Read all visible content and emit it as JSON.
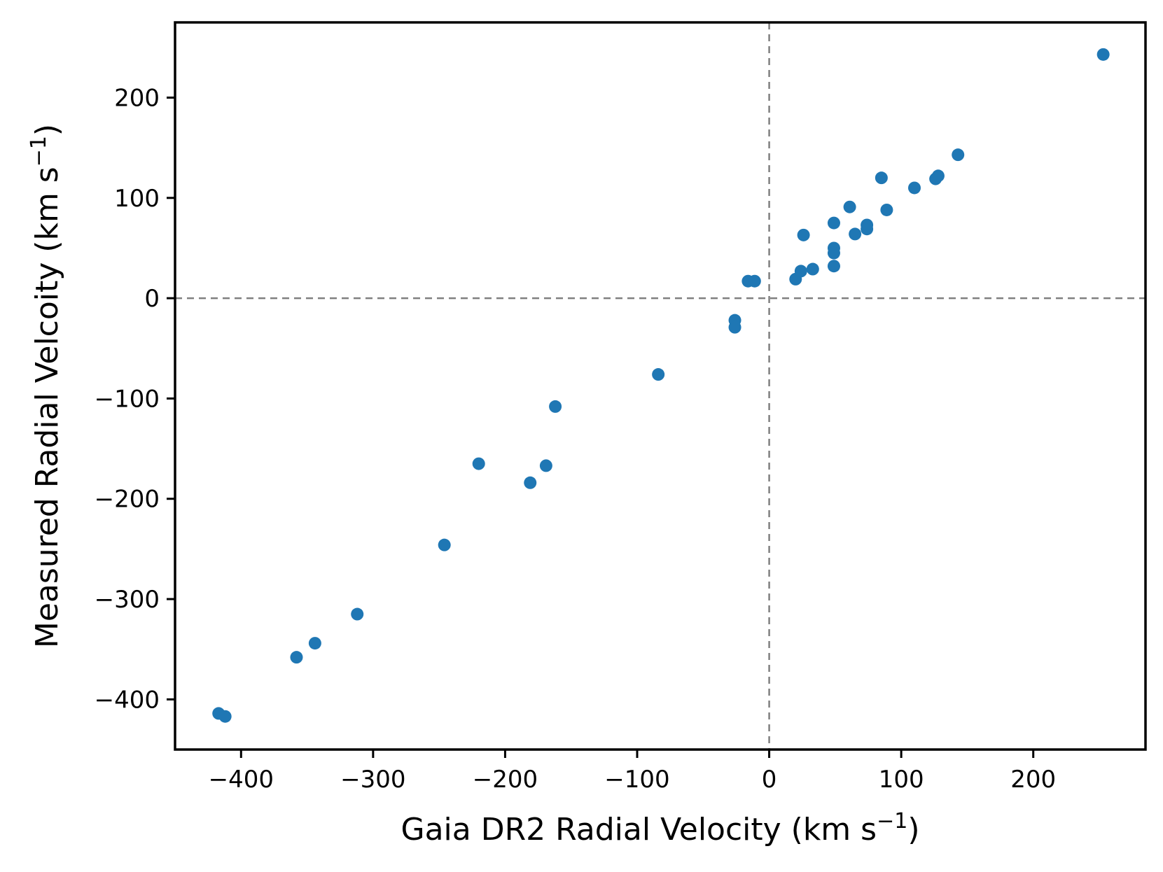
{
  "chart_data": {
    "type": "scatter",
    "title": "",
    "xlabel": {
      "base": "Gaia DR2 Radial Velocity (km s",
      "sup": "−1",
      "end": ")"
    },
    "ylabel": {
      "base": "Measured Radial Velcoity (km s",
      "sup": "−1",
      "end": ")"
    },
    "xlim": [
      -450,
      285
    ],
    "ylim": [
      -450,
      275
    ],
    "xticks": [
      {
        "value": -400,
        "label": "−400"
      },
      {
        "value": -300,
        "label": "−300"
      },
      {
        "value": -200,
        "label": "−200"
      },
      {
        "value": -100,
        "label": "−100"
      },
      {
        "value": 0,
        "label": "0"
      },
      {
        "value": 100,
        "label": "100"
      },
      {
        "value": 200,
        "label": "200"
      }
    ],
    "yticks": [
      {
        "value": -400,
        "label": "−400"
      },
      {
        "value": -300,
        "label": "−300"
      },
      {
        "value": -200,
        "label": "−200"
      },
      {
        "value": -100,
        "label": "−100"
      },
      {
        "value": 0,
        "label": "0"
      },
      {
        "value": 100,
        "label": "100"
      },
      {
        "value": 200,
        "label": "200"
      }
    ],
    "reference_lines": {
      "x": 0,
      "y": 0
    },
    "grid": false,
    "point_color": "#1f77b4",
    "reference_line_color": "#808080",
    "series": [
      {
        "x": [
          -417,
          -412,
          -358,
          -344,
          -312,
          -246,
          -220,
          -181,
          -169,
          -162,
          -84,
          -26,
          -26,
          -16,
          -11,
          20,
          24,
          26,
          33,
          49,
          49,
          49,
          49,
          61,
          65,
          74,
          74,
          85,
          89,
          110,
          126,
          128,
          143,
          253
        ],
        "y": [
          -414,
          -417,
          -358,
          -344,
          -315,
          -246,
          -165,
          -184,
          -167,
          -108,
          -76,
          -22,
          -29,
          17,
          17,
          19,
          27,
          63,
          29,
          75,
          50,
          45,
          32,
          91,
          64,
          73,
          69,
          120,
          88,
          110,
          119,
          122,
          143,
          243
        ]
      }
    ]
  }
}
